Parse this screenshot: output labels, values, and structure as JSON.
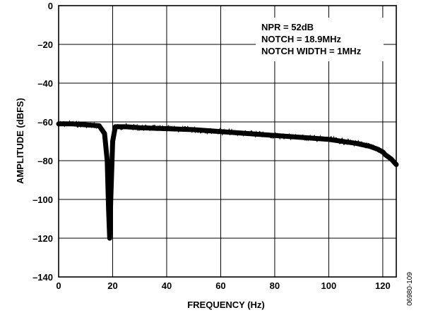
{
  "chart_data": {
    "type": "line",
    "xlabel": "FREQUENCY (Hz)",
    "ylabel": "AMPLITUDE (dBFS)",
    "xlim": [
      0,
      125
    ],
    "ylim": [
      -140,
      0
    ],
    "x_ticks": [
      "0",
      "20",
      "40",
      "60",
      "80",
      "100",
      "120"
    ],
    "y_ticks": [
      "0",
      "–20",
      "–40",
      "–60",
      "–80",
      "–100",
      "–120",
      "–140"
    ],
    "grid": true,
    "annotations": [
      "NPR = 52dB",
      "NOTCH = 18.9MHz",
      "NOTCH WIDTH = 1MHz"
    ],
    "figure_id": "06980-109",
    "series": [
      {
        "x": [
          0,
          5,
          10,
          15,
          17,
          18,
          18.5,
          18.9,
          19.3,
          20,
          21,
          25,
          30,
          40,
          50,
          60,
          70,
          80,
          90,
          100,
          110,
          115,
          118,
          120,
          121,
          122,
          123,
          124,
          125
        ],
        "y": [
          -61,
          -61,
          -61.5,
          -62,
          -66,
          -80,
          -105,
          -120,
          -100,
          -70,
          -62.5,
          -62.5,
          -63,
          -63.5,
          -64,
          -65,
          -66,
          -67,
          -68,
          -69,
          -71,
          -72.5,
          -74,
          -75.5,
          -77,
          -78,
          -79,
          -80.5,
          -82
        ],
        "color": "#000000"
      }
    ]
  }
}
